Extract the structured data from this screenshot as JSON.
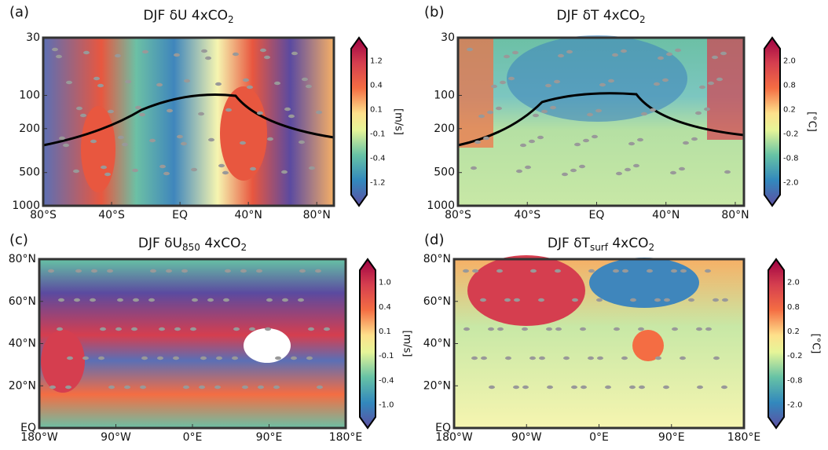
{
  "chart_data": [
    {
      "type": "contour",
      "panel_label": "(a)",
      "title_parts": [
        {
          "text": "DJF δU 4xCO"
        },
        {
          "text": "2",
          "sub": true
        }
      ],
      "yscale": "log",
      "ylim": [
        1000,
        30
      ],
      "yticks": [
        30,
        100,
        200,
        500,
        1000
      ],
      "xlim": [
        -80,
        90
      ],
      "xticks": [
        {
          "value": -80,
          "label": "80°S"
        },
        {
          "value": -40,
          "label": "40°S"
        },
        {
          "value": 0,
          "label": "EQ"
        },
        {
          "value": 40,
          "label": "40°N"
        },
        {
          "value": 80,
          "label": "80°N"
        }
      ],
      "colorbar": {
        "units": "[m/s]",
        "ticks": [
          1.2,
          0.4,
          0.1,
          -0.1,
          -0.4,
          -1.2
        ]
      }
    },
    {
      "type": "contour",
      "panel_label": "(b)",
      "title_parts": [
        {
          "text": "DJF δT 4xCO"
        },
        {
          "text": "2",
          "sub": true
        }
      ],
      "yscale": "log",
      "ylim": [
        1000,
        30
      ],
      "yticks": [
        30,
        100,
        200,
        500,
        1000
      ],
      "xlim": [
        -80,
        85
      ],
      "xticks": [
        {
          "value": -80,
          "label": "80°S"
        },
        {
          "value": -40,
          "label": "40°S"
        },
        {
          "value": 0,
          "label": "EQ"
        },
        {
          "value": 40,
          "label": "40°N"
        },
        {
          "value": 80,
          "label": "80°N"
        }
      ],
      "colorbar": {
        "units": "[°C]",
        "ticks": [
          {
            "value": 2,
            "label": "2.0"
          },
          0.8,
          0.2,
          -0.2,
          -0.8,
          {
            "value": -2,
            "label": "-2.0"
          }
        ]
      }
    },
    {
      "type": "map",
      "panel_label": "(c)",
      "title_parts": [
        {
          "text": "DJF δU"
        },
        {
          "text": "850",
          "sub": true
        },
        {
          "text": " 4xCO"
        },
        {
          "text": "2",
          "sub": true
        }
      ],
      "ylim": [
        0,
        80
      ],
      "yticks": [
        {
          "value": 0,
          "label": "EQ"
        },
        {
          "value": 20,
          "label": "20°N"
        },
        {
          "value": 40,
          "label": "40°N"
        },
        {
          "value": 60,
          "label": "60°N"
        },
        {
          "value": 80,
          "label": "80°N"
        }
      ],
      "xlim": [
        -180,
        180
      ],
      "xticks": [
        {
          "value": -180,
          "label": "180°W"
        },
        {
          "value": -90,
          "label": "90°W"
        },
        {
          "value": 0,
          "label": "0°E"
        },
        {
          "value": 90,
          "label": "90°E"
        },
        {
          "value": 180,
          "label": "180°E"
        }
      ],
      "colorbar": {
        "units": "[m/s]",
        "ticks": [
          {
            "value": 1,
            "label": "1.0"
          },
          0.4,
          0.1,
          -0.1,
          -0.4,
          {
            "value": -1,
            "label": "-1.0"
          }
        ]
      }
    },
    {
      "type": "map",
      "panel_label": "(d)",
      "title_parts": [
        {
          "text": "DJF δT"
        },
        {
          "text": "surf",
          "sub": true
        },
        {
          "text": " 4xCO"
        },
        {
          "text": "2",
          "sub": true
        }
      ],
      "ylim": [
        0,
        80
      ],
      "yticks": [
        {
          "value": 0,
          "label": "EQ"
        },
        {
          "value": 20,
          "label": "20°N"
        },
        {
          "value": 40,
          "label": "40°N"
        },
        {
          "value": 60,
          "label": "60°N"
        },
        {
          "value": 80,
          "label": "80°N"
        }
      ],
      "xlim": [
        -180,
        180
      ],
      "xticks": [
        {
          "value": -180,
          "label": "180°W"
        },
        {
          "value": -90,
          "label": "90°W"
        },
        {
          "value": 0,
          "label": "0°E"
        },
        {
          "value": 90,
          "label": "90°E"
        },
        {
          "value": 180,
          "label": "180°E"
        }
      ],
      "colorbar": {
        "units": "[°C]",
        "ticks": [
          {
            "value": 2,
            "label": "2.0"
          },
          0.8,
          0.2,
          -0.2,
          -0.8,
          {
            "value": -2,
            "label": "-2.0"
          }
        ]
      }
    }
  ]
}
